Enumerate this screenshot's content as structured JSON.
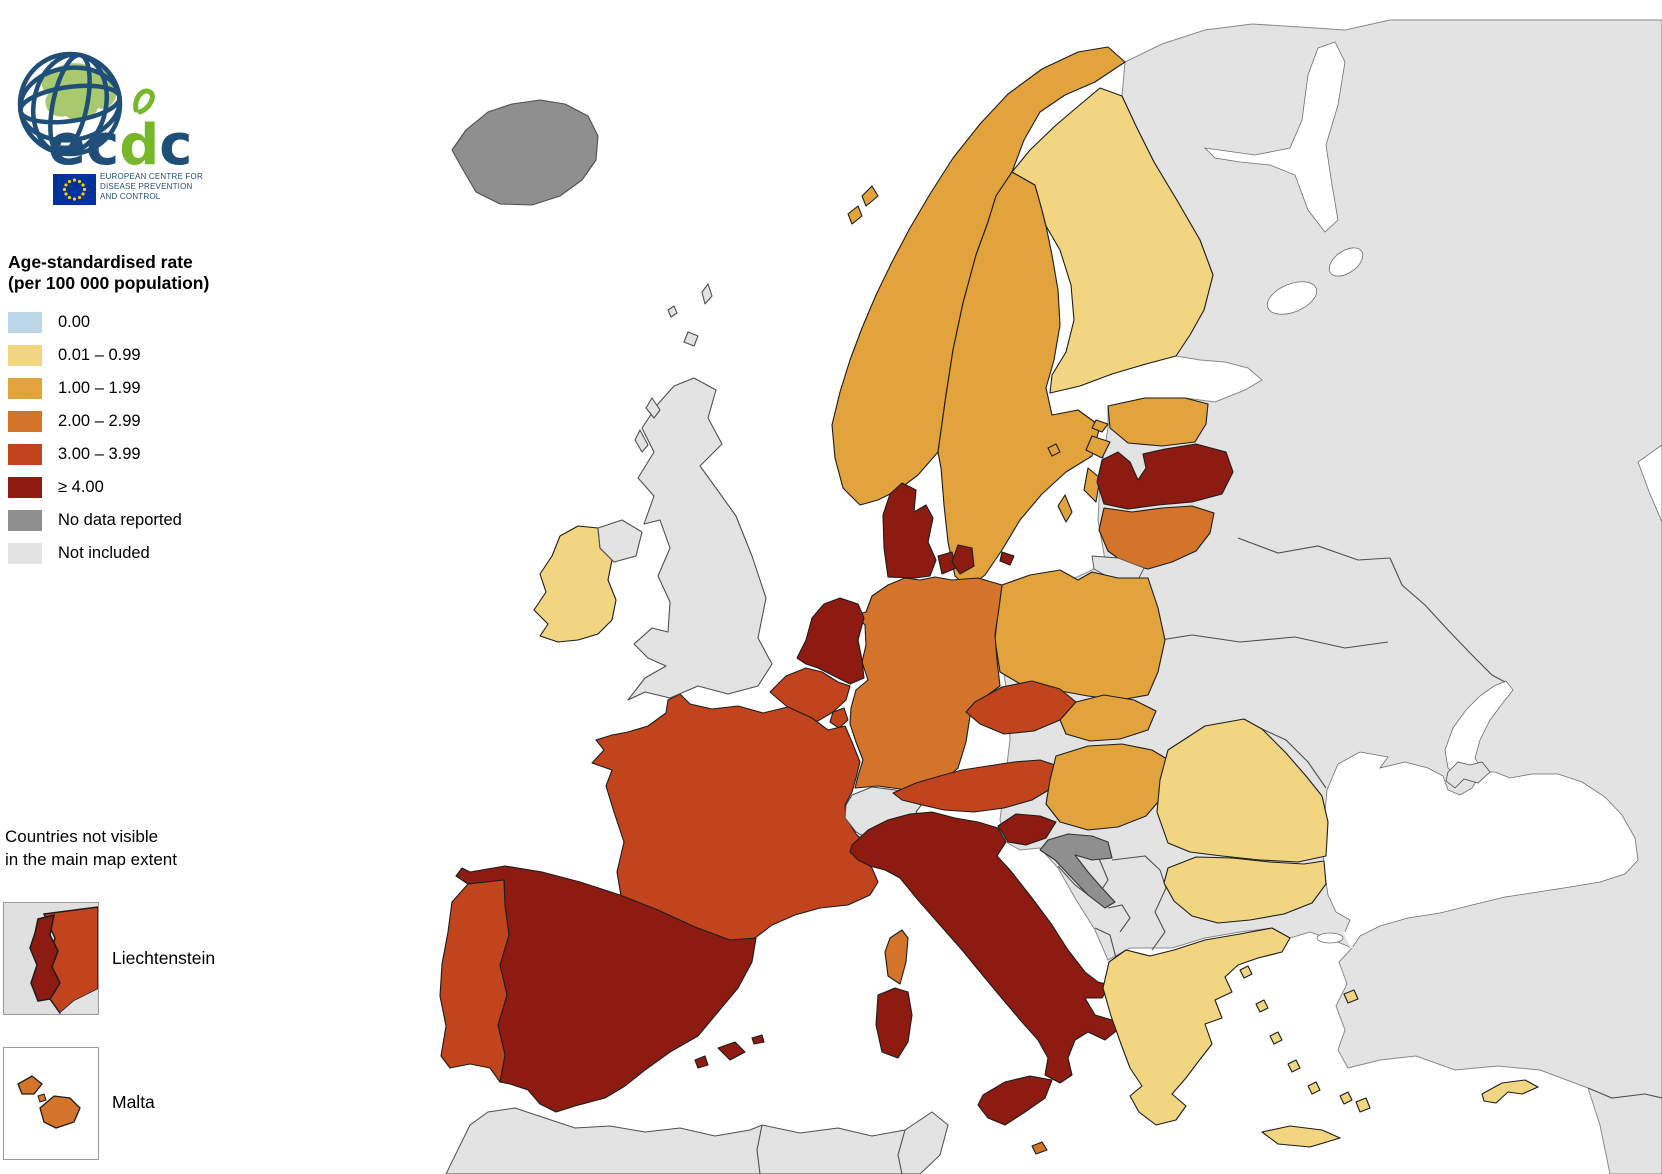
{
  "logo": {
    "wordmark_part1": "ec",
    "wordmark_part2": "d",
    "wordmark_part3": "c",
    "subtitle_lines": [
      "EUROPEAN CENTRE FOR",
      "DISEASE PREVENTION",
      "AND CONTROL"
    ],
    "brand_blue": "#1f4e79",
    "brand_green": "#76b82a"
  },
  "legend": {
    "title_lines": [
      "Age-standardised rate",
      "(per 100 000 population)"
    ],
    "items": [
      {
        "key": "rate0",
        "label": "0.00",
        "color": "#bcd7e8"
      },
      {
        "key": "rate1",
        "label": "0.01 – 0.99",
        "color": "#f1d581"
      },
      {
        "key": "rate2",
        "label": "1.00 – 1.99",
        "color": "#e2a33d"
      },
      {
        "key": "rate3",
        "label": "2.00 – 2.99",
        "color": "#d4732a"
      },
      {
        "key": "rate4",
        "label": "3.00 – 3.99",
        "color": "#c2441d"
      },
      {
        "key": "rate5",
        "label": "≥ 4.00",
        "color": "#8e1b11"
      },
      {
        "key": "nodata",
        "label": "No data reported",
        "color": "#8f8f8f"
      },
      {
        "key": "notincluded",
        "label": "Not included",
        "color": "#e3e3e4"
      }
    ]
  },
  "insets": {
    "title_lines": [
      "Countries not visible",
      "in the main map extent"
    ],
    "items": [
      {
        "name": "Liechtenstein",
        "category": "rate5"
      },
      {
        "name": "Malta",
        "category": "rate3"
      }
    ]
  },
  "map": {
    "sea_color": "#ffffff",
    "included_border_color": "#1c1c1c",
    "other_border_color": "#4f4f4f",
    "countries": [
      {
        "name": "Iceland",
        "category": "nodata"
      },
      {
        "name": "Norway",
        "category": "rate2"
      },
      {
        "name": "Sweden",
        "category": "rate2"
      },
      {
        "name": "Finland",
        "category": "rate1"
      },
      {
        "name": "Estonia",
        "category": "rate2"
      },
      {
        "name": "Latvia",
        "category": "rate5"
      },
      {
        "name": "Lithuania",
        "category": "rate3"
      },
      {
        "name": "Poland",
        "category": "rate2"
      },
      {
        "name": "Germany",
        "category": "rate3"
      },
      {
        "name": "Denmark",
        "category": "rate5"
      },
      {
        "name": "Netherlands",
        "category": "rate5"
      },
      {
        "name": "Belgium",
        "category": "rate4"
      },
      {
        "name": "Luxembourg",
        "category": "rate4"
      },
      {
        "name": "France",
        "category": "rate4"
      },
      {
        "name": "Corsica",
        "category": "rate3"
      },
      {
        "name": "Switzerland",
        "category": "notincluded"
      },
      {
        "name": "Liechtenstein",
        "category": "rate5"
      },
      {
        "name": "Austria",
        "category": "rate4"
      },
      {
        "name": "Czechia",
        "category": "rate4"
      },
      {
        "name": "Slovakia",
        "category": "rate2"
      },
      {
        "name": "Hungary",
        "category": "rate2"
      },
      {
        "name": "Slovenia",
        "category": "rate5"
      },
      {
        "name": "Croatia",
        "category": "nodata"
      },
      {
        "name": "Italy",
        "category": "rate5"
      },
      {
        "name": "Malta",
        "category": "rate3"
      },
      {
        "name": "Spain",
        "category": "rate5"
      },
      {
        "name": "Portugal",
        "category": "rate4"
      },
      {
        "name": "Ireland",
        "category": "rate1"
      },
      {
        "name": "United Kingdom",
        "category": "notincluded"
      },
      {
        "name": "Romania",
        "category": "rate1"
      },
      {
        "name": "Bulgaria",
        "category": "rate1"
      },
      {
        "name": "Greece",
        "category": "rate1"
      },
      {
        "name": "Cyprus",
        "category": "rate1"
      }
    ]
  }
}
